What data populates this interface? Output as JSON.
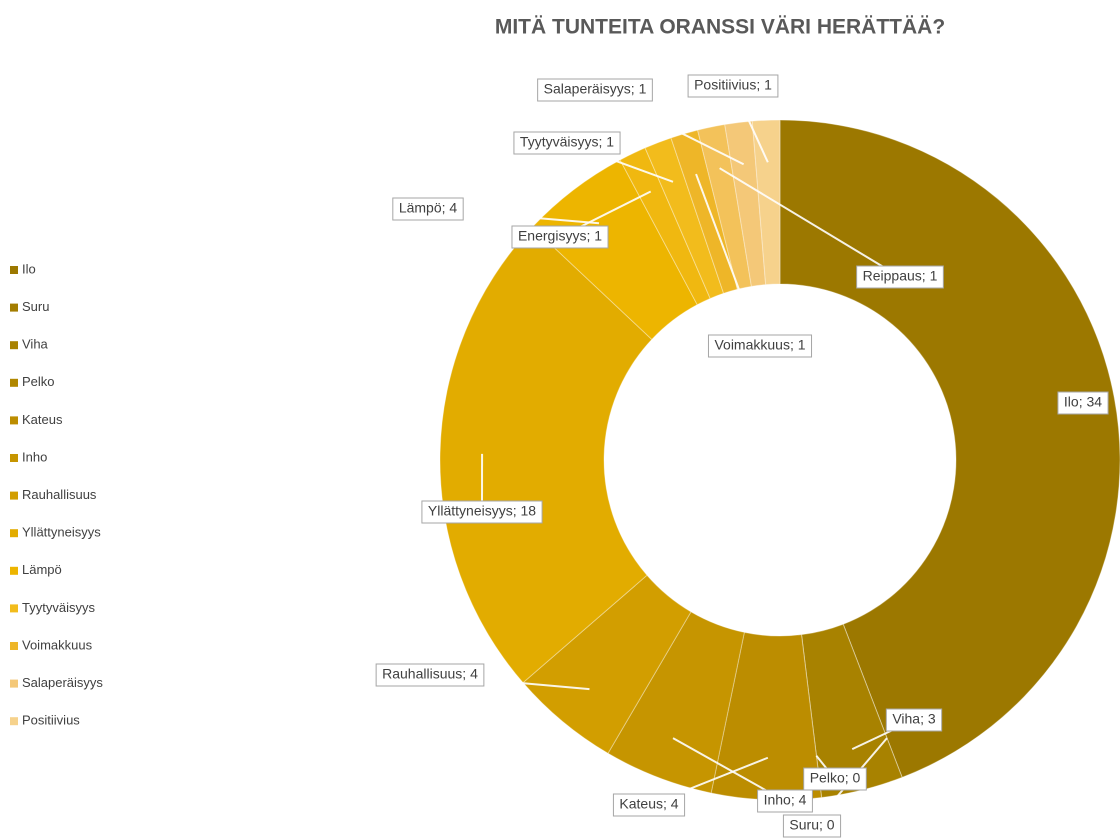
{
  "chart_data": {
    "type": "doughnut",
    "title": "MITÄ TUNTEITA ORANSSI VÄRI HERÄTTÄÄ?",
    "categories": [
      "Ilo",
      "Suru",
      "Viha",
      "Pelko",
      "Kateus",
      "Inho",
      "Rauhallisuus",
      "Yllättyneisyys",
      "Lämpö",
      "Energisyys",
      "Tyytyväisyys",
      "Voimakkuus",
      "Reippaus",
      "Salaperäisyys",
      "Positiivius"
    ],
    "values": [
      34,
      0,
      3,
      0,
      4,
      4,
      4,
      18,
      4,
      1,
      1,
      1,
      1,
      1,
      1
    ],
    "value_labels": [
      "Ilo; 34",
      "Suru; 0",
      "Viha; 3",
      "Pelko; 0",
      "Kateus; 4",
      "Inho; 4",
      "Rauhallisuus; 4",
      "Yllättyneisyys; 18",
      "Lämpö; 4",
      "Energisyys; 1",
      "Tyytyväisyys; 1",
      "Voimakkuus; 1",
      "Reippaus; 1",
      "Salaperäisyys; 1",
      "Positiivius; 1"
    ],
    "colors": [
      "#9c7800",
      "#a37d00",
      "#a88200",
      "#b08700",
      "#bc8d00",
      "#c69500",
      "#d29e00",
      "#e2ac00",
      "#edb500",
      "#f0b810",
      "#f2bc1c",
      "#eeb628",
      "#f3c25a",
      "#f4c878",
      "#f6d28c"
    ],
    "legend": [
      "Ilo",
      "Suru",
      "Viha",
      "Pelko",
      "Kateus",
      "Inho",
      "Rauhallisuus",
      "Yllättyneisyys",
      "Lämpö",
      "Tyytyväisyys",
      "Voimakkuus",
      "Salaperäisyys",
      "Positiivius"
    ]
  }
}
